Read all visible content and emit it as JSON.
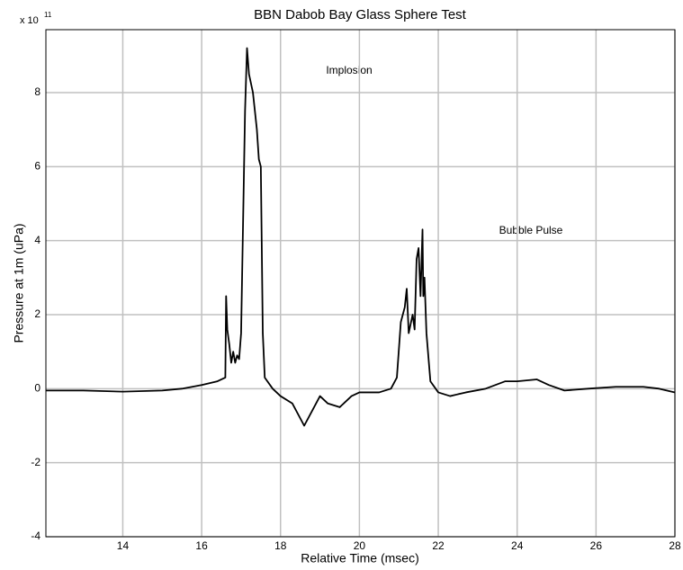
{
  "chart_data": {
    "type": "line",
    "title": "BBN Dabob Bay Glass Sphere Test",
    "xlabel": "Relative Time (msec)",
    "ylabel": "Pressure at 1m (uPa)",
    "y_multiplier": {
      "base": "x 10",
      "exponent": "11"
    },
    "annotations": [
      "Implosion",
      "Bubble Pulse"
    ],
    "xlim": [
      12.05,
      28.0
    ],
    "ylim": [
      -4,
      9.7
    ],
    "xticks": [
      14,
      16,
      18,
      20,
      22,
      24,
      26,
      28
    ],
    "yticks": [
      -4,
      -2,
      0,
      2,
      4,
      6,
      8
    ],
    "grid": true,
    "series": [
      {
        "color": "#000000",
        "x": [
          12.05,
          13,
          14,
          15,
          15.5,
          16,
          16.4,
          16.6,
          16.62,
          16.65,
          16.7,
          16.75,
          16.8,
          16.85,
          16.9,
          16.95,
          17.0,
          17.05,
          17.1,
          17.15,
          17.2,
          17.3,
          17.4,
          17.45,
          17.5,
          17.55,
          17.6,
          17.8,
          18.0,
          18.3,
          18.6,
          18.8,
          19.0,
          19.2,
          19.5,
          19.8,
          20.0,
          20.5,
          20.8,
          20.95,
          21.05,
          21.15,
          21.2,
          21.25,
          21.35,
          21.4,
          21.45,
          21.5,
          21.55,
          21.6,
          21.62,
          21.65,
          21.7,
          21.8,
          22.0,
          22.3,
          22.7,
          23.2,
          23.7,
          24.0,
          24.5,
          24.8,
          25.2,
          25.8,
          26.5,
          27.2,
          27.6,
          28.0
        ],
        "values": [
          -0.05,
          -0.05,
          -0.08,
          -0.05,
          0.0,
          0.1,
          0.2,
          0.3,
          2.5,
          1.6,
          1.2,
          0.7,
          1.0,
          0.7,
          0.9,
          0.8,
          1.5,
          4.5,
          7.5,
          9.2,
          8.5,
          8.0,
          7.0,
          6.2,
          6.0,
          1.5,
          0.3,
          0.0,
          -0.2,
          -0.4,
          -1.0,
          -0.6,
          -0.2,
          -0.4,
          -0.5,
          -0.2,
          -0.1,
          -0.1,
          0.0,
          0.3,
          1.8,
          2.2,
          2.7,
          1.5,
          2.0,
          1.6,
          3.5,
          3.8,
          2.5,
          4.3,
          2.5,
          3.0,
          1.5,
          0.2,
          -0.1,
          -0.2,
          -0.1,
          0.0,
          0.2,
          0.2,
          0.25,
          0.1,
          -0.05,
          0.0,
          0.05,
          0.05,
          0.0,
          -0.1
        ]
      }
    ]
  }
}
